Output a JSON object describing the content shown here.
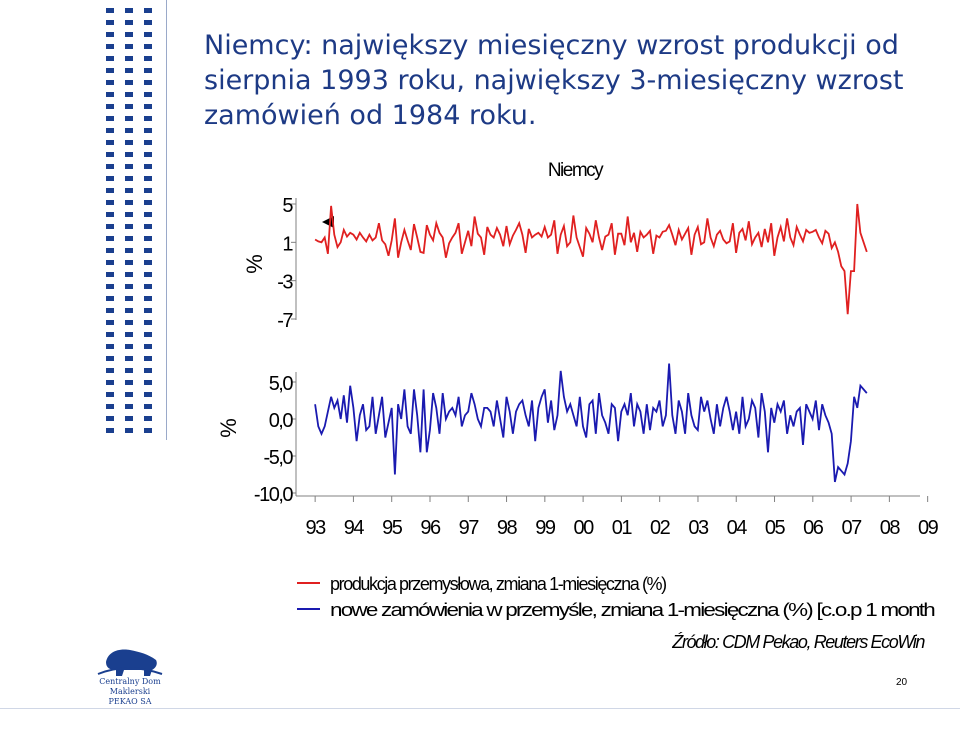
{
  "title_lines": [
    "Niemcy: największy miesięczny wzrost produkcji od",
    "sierpnia 1993 roku, największy 3-miesięczny wzrost",
    "zamówień od 1984 roku."
  ],
  "logo": {
    "line1": "Centralny Dom Maklerski",
    "line2": "PEKAO SA"
  },
  "page_number": "20",
  "colors": {
    "production": "#e02020",
    "orders": "#1a1ab0",
    "accent": "#1a3f8f"
  },
  "chart_data": [
    {
      "type": "line",
      "title": "Niemcy",
      "ylabel": "%",
      "yticks": [
        "5",
        "1",
        "-3",
        "-7"
      ],
      "ylim": [
        -7,
        5
      ],
      "xlim": [
        1993.0,
        2009.3
      ],
      "series": [
        {
          "name": "produkcja przemysłowa, zmiana 1-miesięczna (%)",
          "color": "#e02020",
          "x_start": 1993.5,
          "step": 0.0833,
          "values": [
            1.3,
            1.1,
            1.0,
            1.5,
            -0.2,
            4.8,
            1.8,
            0.5,
            1.0,
            2.3,
            1.6,
            2.0,
            1.8,
            1.3,
            2.0,
            1.5,
            1.1,
            1.8,
            1.2,
            1.5,
            3.0,
            1.2,
            0.8,
            -0.4,
            1.2,
            3.5,
            -0.6,
            1.0,
            2.3,
            1.2,
            0.2,
            2.9,
            1.5,
            0.0,
            -0.1,
            2.8,
            1.8,
            1.2,
            3.0,
            2.0,
            1.5,
            -0.6,
            0.9,
            1.5,
            2.0,
            3.0,
            -0.2,
            1.0,
            2.2,
            0.6,
            3.7,
            1.9,
            1.5,
            -0.3,
            2.6,
            1.8,
            1.5,
            2.5,
            1.8,
            0.6,
            2.7,
            0.8,
            1.7,
            2.3,
            3.0,
            1.8,
            -0.1,
            2.4,
            1.5,
            1.8,
            2.0,
            1.6,
            2.6,
            1.5,
            1.8,
            3.3,
            -0.2,
            1.8,
            2.7,
            0.6,
            1.0,
            3.8,
            1.5,
            0.5,
            -0.5,
            2.5,
            1.9,
            1.0,
            3.3,
            1.5,
            0.2,
            1.6,
            1.8,
            3.0,
            -0.3,
            1.9,
            1.9,
            0.7,
            3.7,
            1.0,
            2.0,
            0.0,
            2.1,
            1.5,
            1.8,
            2.2,
            -0.2,
            1.7,
            1.5,
            2.1,
            2.2,
            2.8,
            1.8,
            0.7,
            2.3,
            1.3,
            1.9,
            2.5,
            -0.3,
            1.8,
            2.6,
            0.8,
            1.0,
            3.5,
            1.5,
            0.6,
            1.8,
            2.2,
            1.3,
            0.9,
            1.1,
            3.0,
            -0.1,
            2.0,
            2.4,
            1.2,
            3.2,
            0.8,
            1.5,
            2.0,
            0.5,
            2.4,
            1.0,
            3.0,
            -0.4,
            1.5,
            2.6,
            1.1,
            3.5,
            1.5,
            0.7,
            2.6,
            1.8,
            1.1,
            2.3,
            2.0,
            2.1,
            2.3,
            1.5,
            0.9,
            2.2,
            1.9,
            0.4,
            1.0,
            0.0,
            -1.5,
            -2.0,
            -6.5,
            -2.0,
            -2.0,
            5.0,
            2.0,
            1.0,
            0.0
          ]
        }
      ]
    },
    {
      "type": "line",
      "ylabel": "%",
      "yticks": [
        "5,0",
        "0,0",
        "-5,0",
        "-10,0"
      ],
      "ylim": [
        -10,
        5
      ],
      "xlim": [
        1993.0,
        2009.3
      ],
      "x_tick_labels": [
        "93",
        "94",
        "95",
        "96",
        "97",
        "98",
        "99",
        "00",
        "01",
        "02",
        "03",
        "04",
        "05",
        "06",
        "07",
        "08",
        "09"
      ],
      "series": [
        {
          "name": "nowe zamówienia w przemyśle, zmiana 1-miesięczna (%) [c.o.p 1 month",
          "color": "#1a1ab0",
          "x_start": 1993.5,
          "step": 0.0833,
          "values": [
            2.0,
            -1.0,
            -2.0,
            -1.0,
            1.0,
            3.0,
            1.5,
            2.5,
            0.0,
            3.2,
            -0.5,
            4.5,
            1.5,
            -3.0,
            0.5,
            2.0,
            -1.5,
            -1.0,
            3.0,
            -2.0,
            0.5,
            3.0,
            -2.5,
            -0.5,
            1.5,
            -7.5,
            2.0,
            0.0,
            4.0,
            -1.0,
            -2.0,
            4.0,
            0.5,
            -4.5,
            4.0,
            -4.5,
            -1.5,
            3.5,
            1.5,
            -2.0,
            3.5,
            0.0,
            1.0,
            1.5,
            0.5,
            3.0,
            -1.0,
            0.5,
            1.0,
            3.5,
            2.0,
            0.0,
            -1.0,
            1.5,
            1.5,
            1.0,
            -1.0,
            2.5,
            0.0,
            -2.5,
            3.0,
            1.0,
            -2.0,
            1.0,
            2.0,
            2.5,
            0.5,
            -1.0,
            2.5,
            -3.0,
            1.5,
            3.0,
            4.0,
            -0.5,
            2.5,
            -1.5,
            0.5,
            6.5,
            3.0,
            1.0,
            2.0,
            0.5,
            -1.0,
            3.0,
            -1.0,
            -2.5,
            2.0,
            2.5,
            -2.0,
            3.5,
            0.5,
            -0.5,
            -2.0,
            2.0,
            1.5,
            -3.0,
            1.0,
            2.0,
            0.5,
            3.5,
            -1.0,
            2.0,
            1.0,
            -2.0,
            2.0,
            -1.5,
            1.5,
            1.0,
            2.5,
            -1.0,
            0.5,
            7.5,
            0.5,
            -2.0,
            2.5,
            1.0,
            -2.0,
            3.5,
            0.5,
            -1.0,
            -1.5,
            3.0,
            1.0,
            2.5,
            0.0,
            -2.0,
            2.0,
            -1.0,
            1.5,
            3.0,
            1.0,
            -1.5,
            1.0,
            -2.0,
            3.0,
            -1.0,
            0.0,
            2.5,
            1.5,
            -2.5,
            3.5,
            1.0,
            -4.5,
            1.5,
            -0.5,
            2.0,
            1.0,
            2.5,
            -2.0,
            0.5,
            -1.0,
            1.0,
            1.5,
            -3.5,
            2.0,
            1.0,
            0.0,
            2.5,
            -1.5,
            2.0,
            0.5,
            -0.5,
            -2.0,
            -8.5,
            -6.5,
            -7.0,
            -7.5,
            -6.0,
            -3.0,
            3.0,
            1.5,
            4.5,
            4.0,
            3.5
          ]
        }
      ]
    }
  ],
  "legend": [
    {
      "text": "produkcja przemysłowa, zmiana 1-miesięczna (%)",
      "color": "#e02020"
    },
    {
      "text": "nowe zamówienia w przemyśle, zmiana 1-miesięczna (%) [c.o.p 1 month",
      "color": "#1a1ab0"
    }
  ],
  "source": "Źródło: CDM Pekao, Reuters EcoWin"
}
